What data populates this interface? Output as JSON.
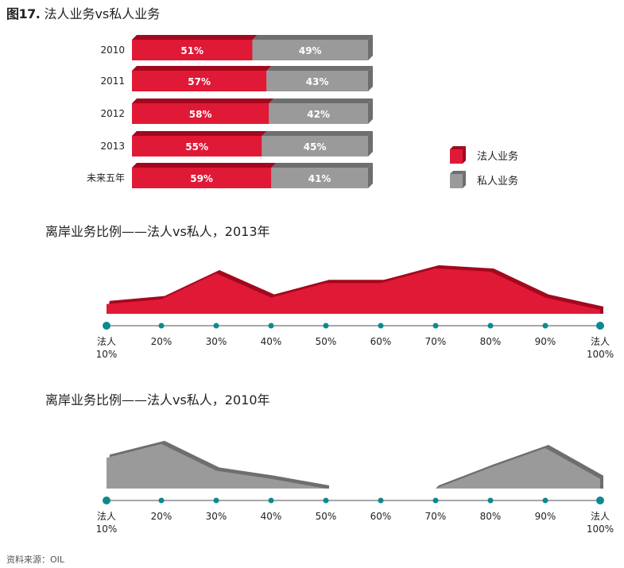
{
  "figure": {
    "number": "图17.",
    "title": "法人业务vs私人业务"
  },
  "colors": {
    "corporate": "#e01937",
    "corporate_dark": "#a3081d",
    "private": "#9a9a9b",
    "private_dark": "#6e6e70",
    "axis": "#8a8a8a",
    "dot": "#0b8a8f"
  },
  "chart_data": [
    {
      "type": "bar",
      "stacked": true,
      "orientation": "horizontal",
      "categories": [
        "2010",
        "2011",
        "2012",
        "2013",
        "未来五年"
      ],
      "series": [
        {
          "name": "法人业务",
          "values": [
            51,
            57,
            58,
            55,
            59
          ],
          "labels": [
            "51%",
            "57%",
            "58%",
            "55%",
            "59%"
          ]
        },
        {
          "name": "私人业务",
          "values": [
            49,
            43,
            42,
            45,
            41
          ],
          "labels": [
            "49%",
            "43%",
            "42%",
            "45%",
            "41%"
          ]
        }
      ],
      "legend": {
        "placement": "right",
        "items": [
          "法人业务",
          "私人业务"
        ]
      }
    },
    {
      "type": "area",
      "title": "离岸业务比例——法人vs私人，2013年",
      "x": [
        10,
        20,
        30,
        40,
        50,
        60,
        70,
        80,
        90,
        100
      ],
      "x_labels": [
        [
          "法人",
          "10%"
        ],
        [
          "20%"
        ],
        [
          "30%"
        ],
        [
          "40%"
        ],
        [
          "50%"
        ],
        [
          "60%"
        ],
        [
          "70%"
        ],
        [
          "80%"
        ],
        [
          "90%"
        ],
        [
          "法人",
          "100%"
        ]
      ],
      "y": [
        12,
        18,
        50,
        20,
        38,
        38,
        56,
        52,
        20,
        5
      ],
      "series": [
        {
          "values": [
            12,
            18,
            50,
            20,
            38,
            38,
            56,
            52,
            20,
            5
          ]
        }
      ]
    },
    {
      "type": "area",
      "title": "离岸业务比例——法人vs私人，2010年",
      "x": [
        10,
        20,
        30,
        40,
        50,
        60,
        70,
        80,
        90,
        100
      ],
      "x_labels": [
        [
          "法人",
          "10%"
        ],
        [
          "20%"
        ],
        [
          "30%"
        ],
        [
          "40%"
        ],
        [
          "50%"
        ],
        [
          "60%"
        ],
        [
          "70%"
        ],
        [
          "80%"
        ],
        [
          "90%"
        ],
        [
          "法人",
          "100%"
        ]
      ],
      "y": [
        38,
        55,
        22,
        12,
        0,
        null,
        0,
        26,
        50,
        12
      ],
      "series": [
        {
          "values": [
            38,
            55,
            22,
            12,
            0,
            null,
            0,
            26,
            50,
            12
          ]
        }
      ]
    }
  ],
  "source": "资料来源：OIL"
}
